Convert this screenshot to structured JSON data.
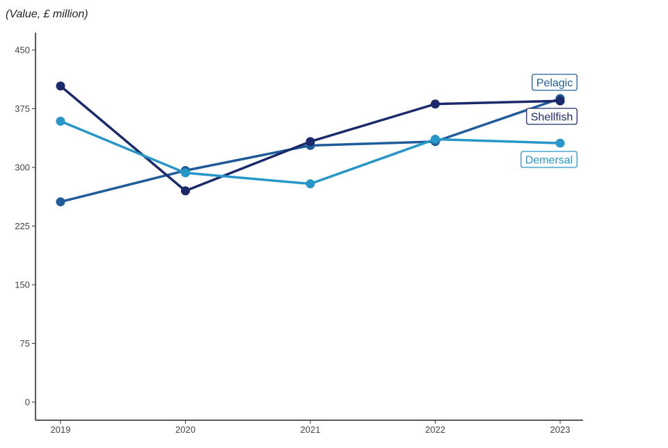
{
  "chart_data": {
    "type": "line",
    "title": "",
    "unit_label": "(Value, £ million)",
    "xlabel": "",
    "ylabel": "",
    "x": [
      "2019",
      "2020",
      "2021",
      "2022",
      "2023"
    ],
    "ylim": [
      0,
      450
    ],
    "yticks": [
      0,
      75,
      150,
      225,
      300,
      375,
      450
    ],
    "grid": false,
    "legend": "direct labels at line ends",
    "series": [
      {
        "name": "Pelagic",
        "color": "#1f5c99",
        "values": [
          256,
          296,
          328,
          333,
          388
        ]
      },
      {
        "name": "Shellfish",
        "color": "#1b2a6b",
        "values": [
          404,
          270,
          333,
          381,
          385
        ]
      },
      {
        "name": "Demersal",
        "color": "#2796c8",
        "values": [
          359,
          293,
          279,
          336,
          331
        ]
      }
    ]
  }
}
